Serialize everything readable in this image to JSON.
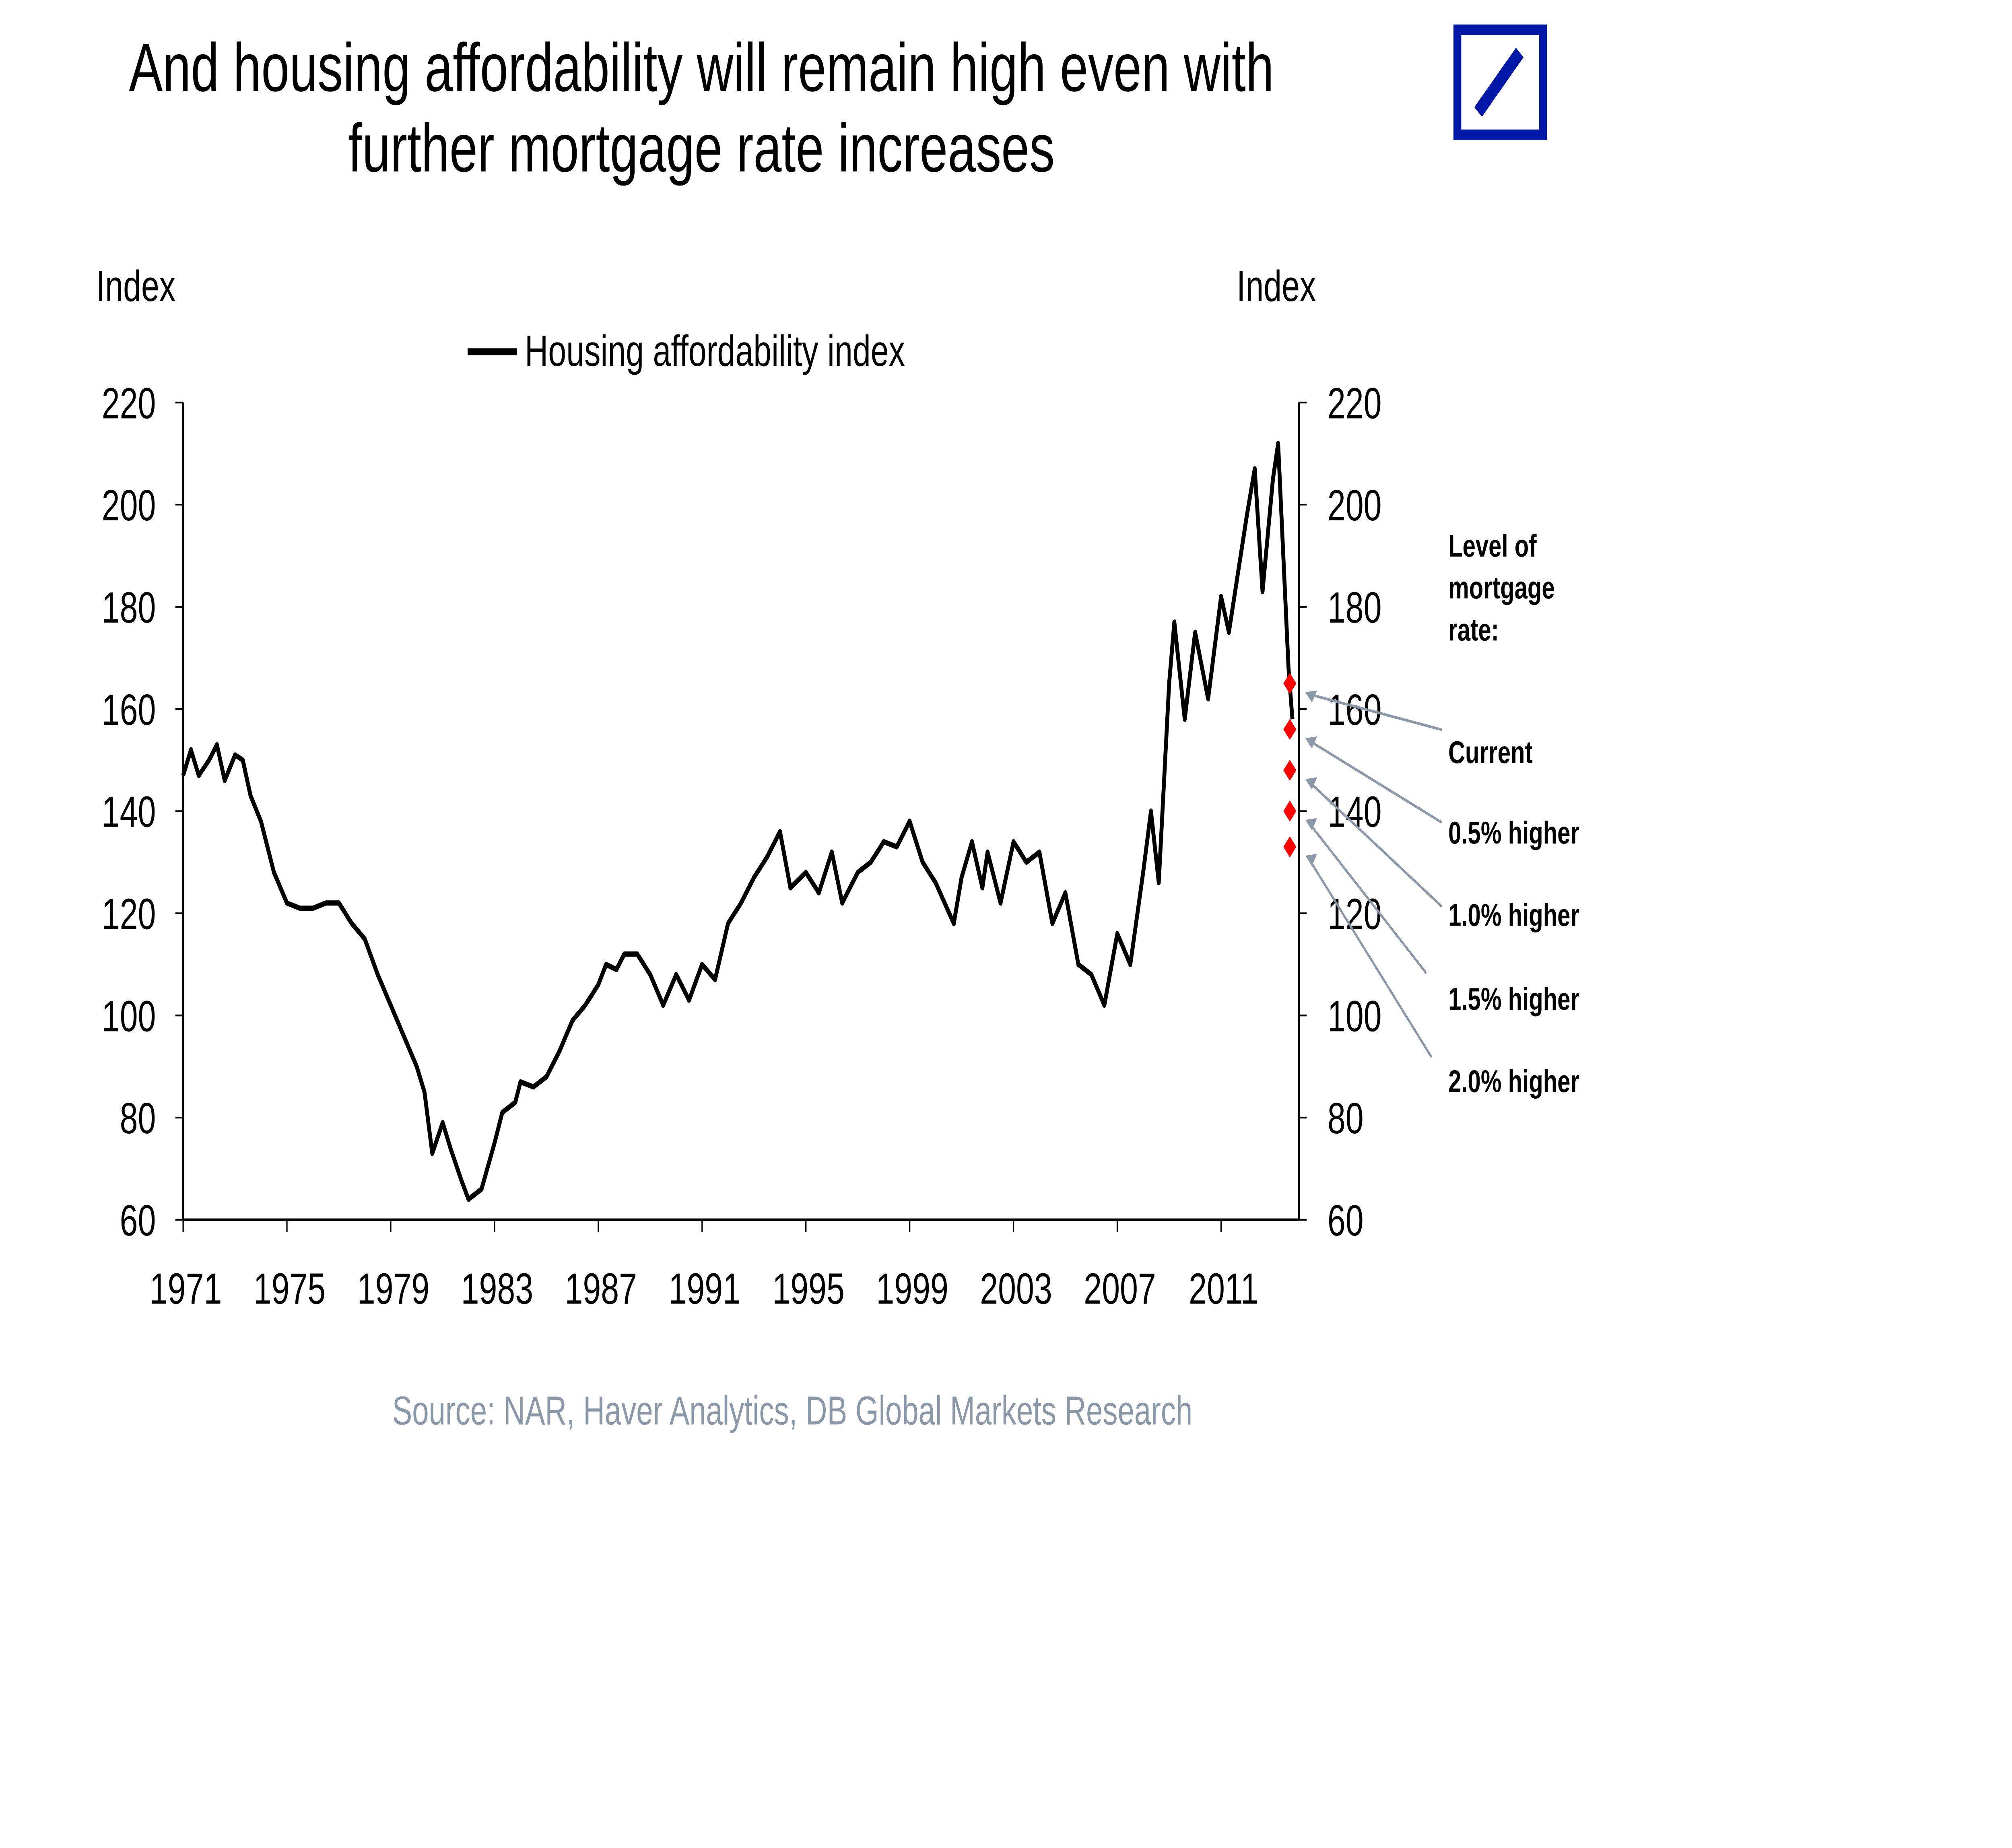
{
  "chart_data": {
    "type": "line",
    "title": "And housing affordability will remain high even with further mortgage rate increases",
    "title_lines": [
      "And housing affordability will remain high even with",
      "further mortgage rate increases"
    ],
    "ylabel_left": "Index",
    "ylabel_right": "Index",
    "ylim": [
      60,
      220
    ],
    "yticks": [
      60,
      80,
      100,
      120,
      140,
      160,
      180,
      200,
      220
    ],
    "xlim": [
      1971,
      2014
    ],
    "xticks": [
      1971,
      1975,
      1979,
      1983,
      1987,
      1991,
      1995,
      1999,
      2003,
      2007,
      2011
    ],
    "legend": {
      "position": "top-center",
      "entries": [
        "Housing affordability index"
      ]
    },
    "grid": false,
    "series": [
      {
        "name": "Housing affordability index",
        "color": "#000000",
        "x": [
          1971.0,
          1971.3,
          1971.6,
          1972.0,
          1972.3,
          1972.6,
          1973.0,
          1973.3,
          1973.6,
          1974.0,
          1974.5,
          1975.0,
          1975.5,
          1976.0,
          1976.5,
          1977.0,
          1977.5,
          1978.0,
          1978.5,
          1979.0,
          1979.5,
          1980.0,
          1980.3,
          1980.6,
          1981.0,
          1981.3,
          1981.7,
          1982.0,
          1982.5,
          1983.0,
          1983.3,
          1983.8,
          1984.0,
          1984.5,
          1985.0,
          1985.5,
          1986.0,
          1986.5,
          1987.0,
          1987.3,
          1987.7,
          1988.0,
          1988.5,
          1989.0,
          1989.5,
          1990.0,
          1990.5,
          1991.0,
          1991.5,
          1992.0,
          1992.5,
          1993.0,
          1993.5,
          1994.0,
          1994.4,
          1995.0,
          1995.5,
          1996.0,
          1996.4,
          1997.0,
          1997.5,
          1998.0,
          1998.5,
          1999.0,
          1999.5,
          2000.0,
          2000.7,
          2001.0,
          2001.4,
          2001.8,
          2002.0,
          2002.5,
          2003.0,
          2003.5,
          2004.0,
          2004.5,
          2005.0,
          2005.5,
          2006.0,
          2006.5,
          2007.0,
          2007.5,
          2008.0,
          2008.3,
          2008.6,
          2009.0,
          2009.2,
          2009.6,
          2010.0,
          2010.5,
          2011.0,
          2011.3,
          2011.6,
          2012.0,
          2012.3,
          2012.6,
          2013.0,
          2013.2,
          2013.6,
          2013.75
        ],
        "values": [
          147,
          152,
          147,
          150,
          153,
          146,
          151,
          150,
          143,
          138,
          128,
          122,
          121,
          121,
          122,
          122,
          118,
          115,
          108,
          102,
          96,
          90,
          85,
          73,
          79,
          74,
          68,
          64,
          66,
          75,
          81,
          83,
          87,
          86,
          88,
          93,
          99,
          102,
          106,
          110,
          109,
          112,
          112,
          108,
          102,
          108,
          103,
          110,
          107,
          118,
          122,
          127,
          131,
          136,
          125,
          128,
          124,
          132,
          122,
          128,
          130,
          134,
          133,
          138,
          130,
          126,
          118,
          127,
          134,
          125,
          132,
          122,
          134,
          130,
          132,
          118,
          124,
          110,
          108,
          102,
          116,
          110,
          128,
          140,
          126,
          165,
          177,
          158,
          175,
          162,
          182,
          175,
          185,
          198,
          207,
          183,
          205,
          212,
          168,
          158
        ]
      }
    ],
    "scenario_points": {
      "color": "#ff0000",
      "x": 2013.65,
      "values": [
        165,
        156,
        148,
        140,
        133
      ]
    },
    "annotation_header": [
      "Level of",
      "mortgage",
      "rate:"
    ],
    "annotations": [
      "Current",
      "0.5% higher",
      "1.0% higher",
      "1.5% higher",
      "2.0% higher"
    ],
    "source": "Source: NAR, Haver Analytics, DB Global Markets Research"
  },
  "logo": {
    "color": "#0018a8",
    "name": "deutsche-bank-logo"
  }
}
